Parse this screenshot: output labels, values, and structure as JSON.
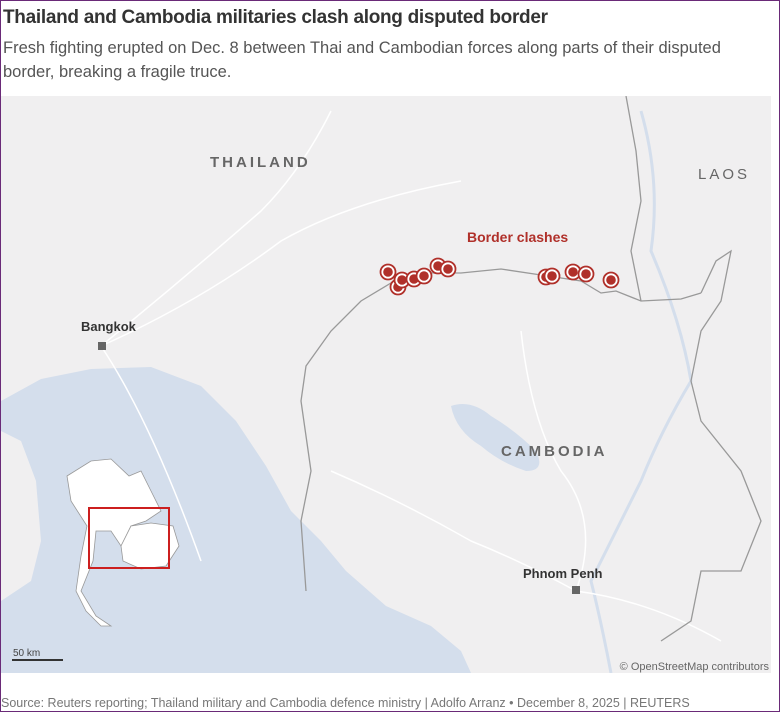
{
  "title": "Thailand and Cambodia militaries clash along disputed border",
  "subtitle": "Fresh fighting erupted on Dec. 8 between Thai and Cambodian forces along parts of their disputed border, breaking a fragile truce.",
  "map": {
    "countries": [
      "THAILAND",
      "CAMBODIA",
      "LAOS"
    ],
    "cities": [
      "Bangkok",
      "Phnom Penh"
    ],
    "annotation": "Border clashes",
    "scale_label": "50 km",
    "attribution": "© OpenStreetMap contributors",
    "colors": {
      "land": "#f0eff0",
      "water": "#d4deec",
      "clash": "#b0302a",
      "inset_box": "#cc1f1f"
    }
  },
  "source": "Source: Reuters reporting; Thailand military and Cambodia defence ministry | Adolfo Arranz • December 8, 2025 | REUTERS"
}
